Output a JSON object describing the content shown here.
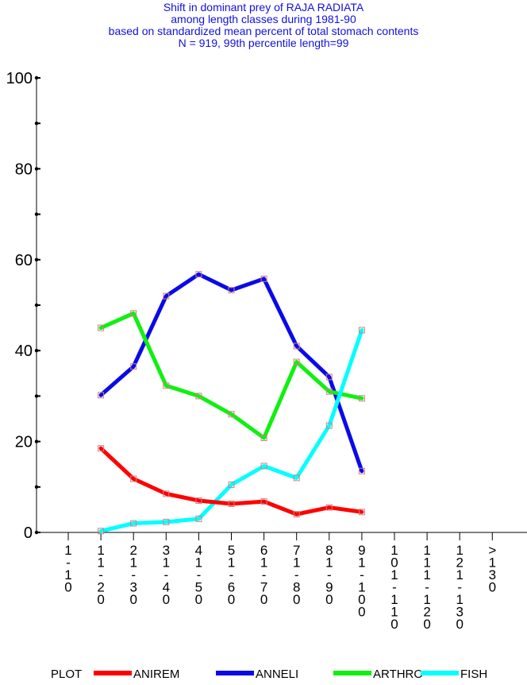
{
  "title_lines": [
    "Shift in dominant prey of RAJA RADIATA",
    "among length classes during 1981-90",
    "based on standardized mean percent of  total stomach contents",
    "N = 919, 99th percentile  length=99"
  ],
  "chart_data": {
    "type": "line",
    "ylim": [
      0,
      100
    ],
    "yticks": [
      0,
      20,
      40,
      60,
      80,
      100
    ],
    "categories": [
      "1\n-\n1\n0",
      "1\n1\n-\n2\n0",
      "2\n1\n-\n3\n0",
      "3\n1\n-\n4\n0",
      "4\n1\n-\n5\n0",
      "5\n1\n-\n6\n0",
      "6\n1\n-\n7\n0",
      "7\n1\n-\n8\n0",
      "8\n1\n-\n9\n0",
      "9\n1\n-\n1\n0\n0",
      "1\n0\n1\n-\n1\n1\n0",
      "1\n1\n1\n-\n1\n2\n0",
      "1\n2\n1\n-\n1\n3\n0",
      ">\n1\n3\n0"
    ],
    "legend_label": "PLOT",
    "legend_position": "bottom",
    "grid": false,
    "series": [
      {
        "name": "ANIREM",
        "color": "#ff0000",
        "values": [
          null,
          18.5,
          11.8,
          8.5,
          7.0,
          6.3,
          6.8,
          4.0,
          5.5,
          4.5,
          null,
          null,
          null,
          null
        ]
      },
      {
        "name": "ANNELI",
        "color": "#0a0ae8",
        "values": [
          null,
          30.2,
          36.5,
          52.0,
          56.8,
          53.3,
          55.8,
          41.0,
          34.2,
          13.5,
          null,
          null,
          null,
          null
        ]
      },
      {
        "name": "ARTHRO",
        "color": "#10f010",
        "values": [
          null,
          45.0,
          48.2,
          32.3,
          30.0,
          26.0,
          20.8,
          37.5,
          31.0,
          29.5,
          null,
          null,
          null,
          null
        ]
      },
      {
        "name": "FISH",
        "color": "#00ffff",
        "values": [
          null,
          0.3,
          2.0,
          2.3,
          3.0,
          10.5,
          14.6,
          12.0,
          23.5,
          44.5,
          null,
          null,
          null,
          null
        ]
      }
    ]
  }
}
